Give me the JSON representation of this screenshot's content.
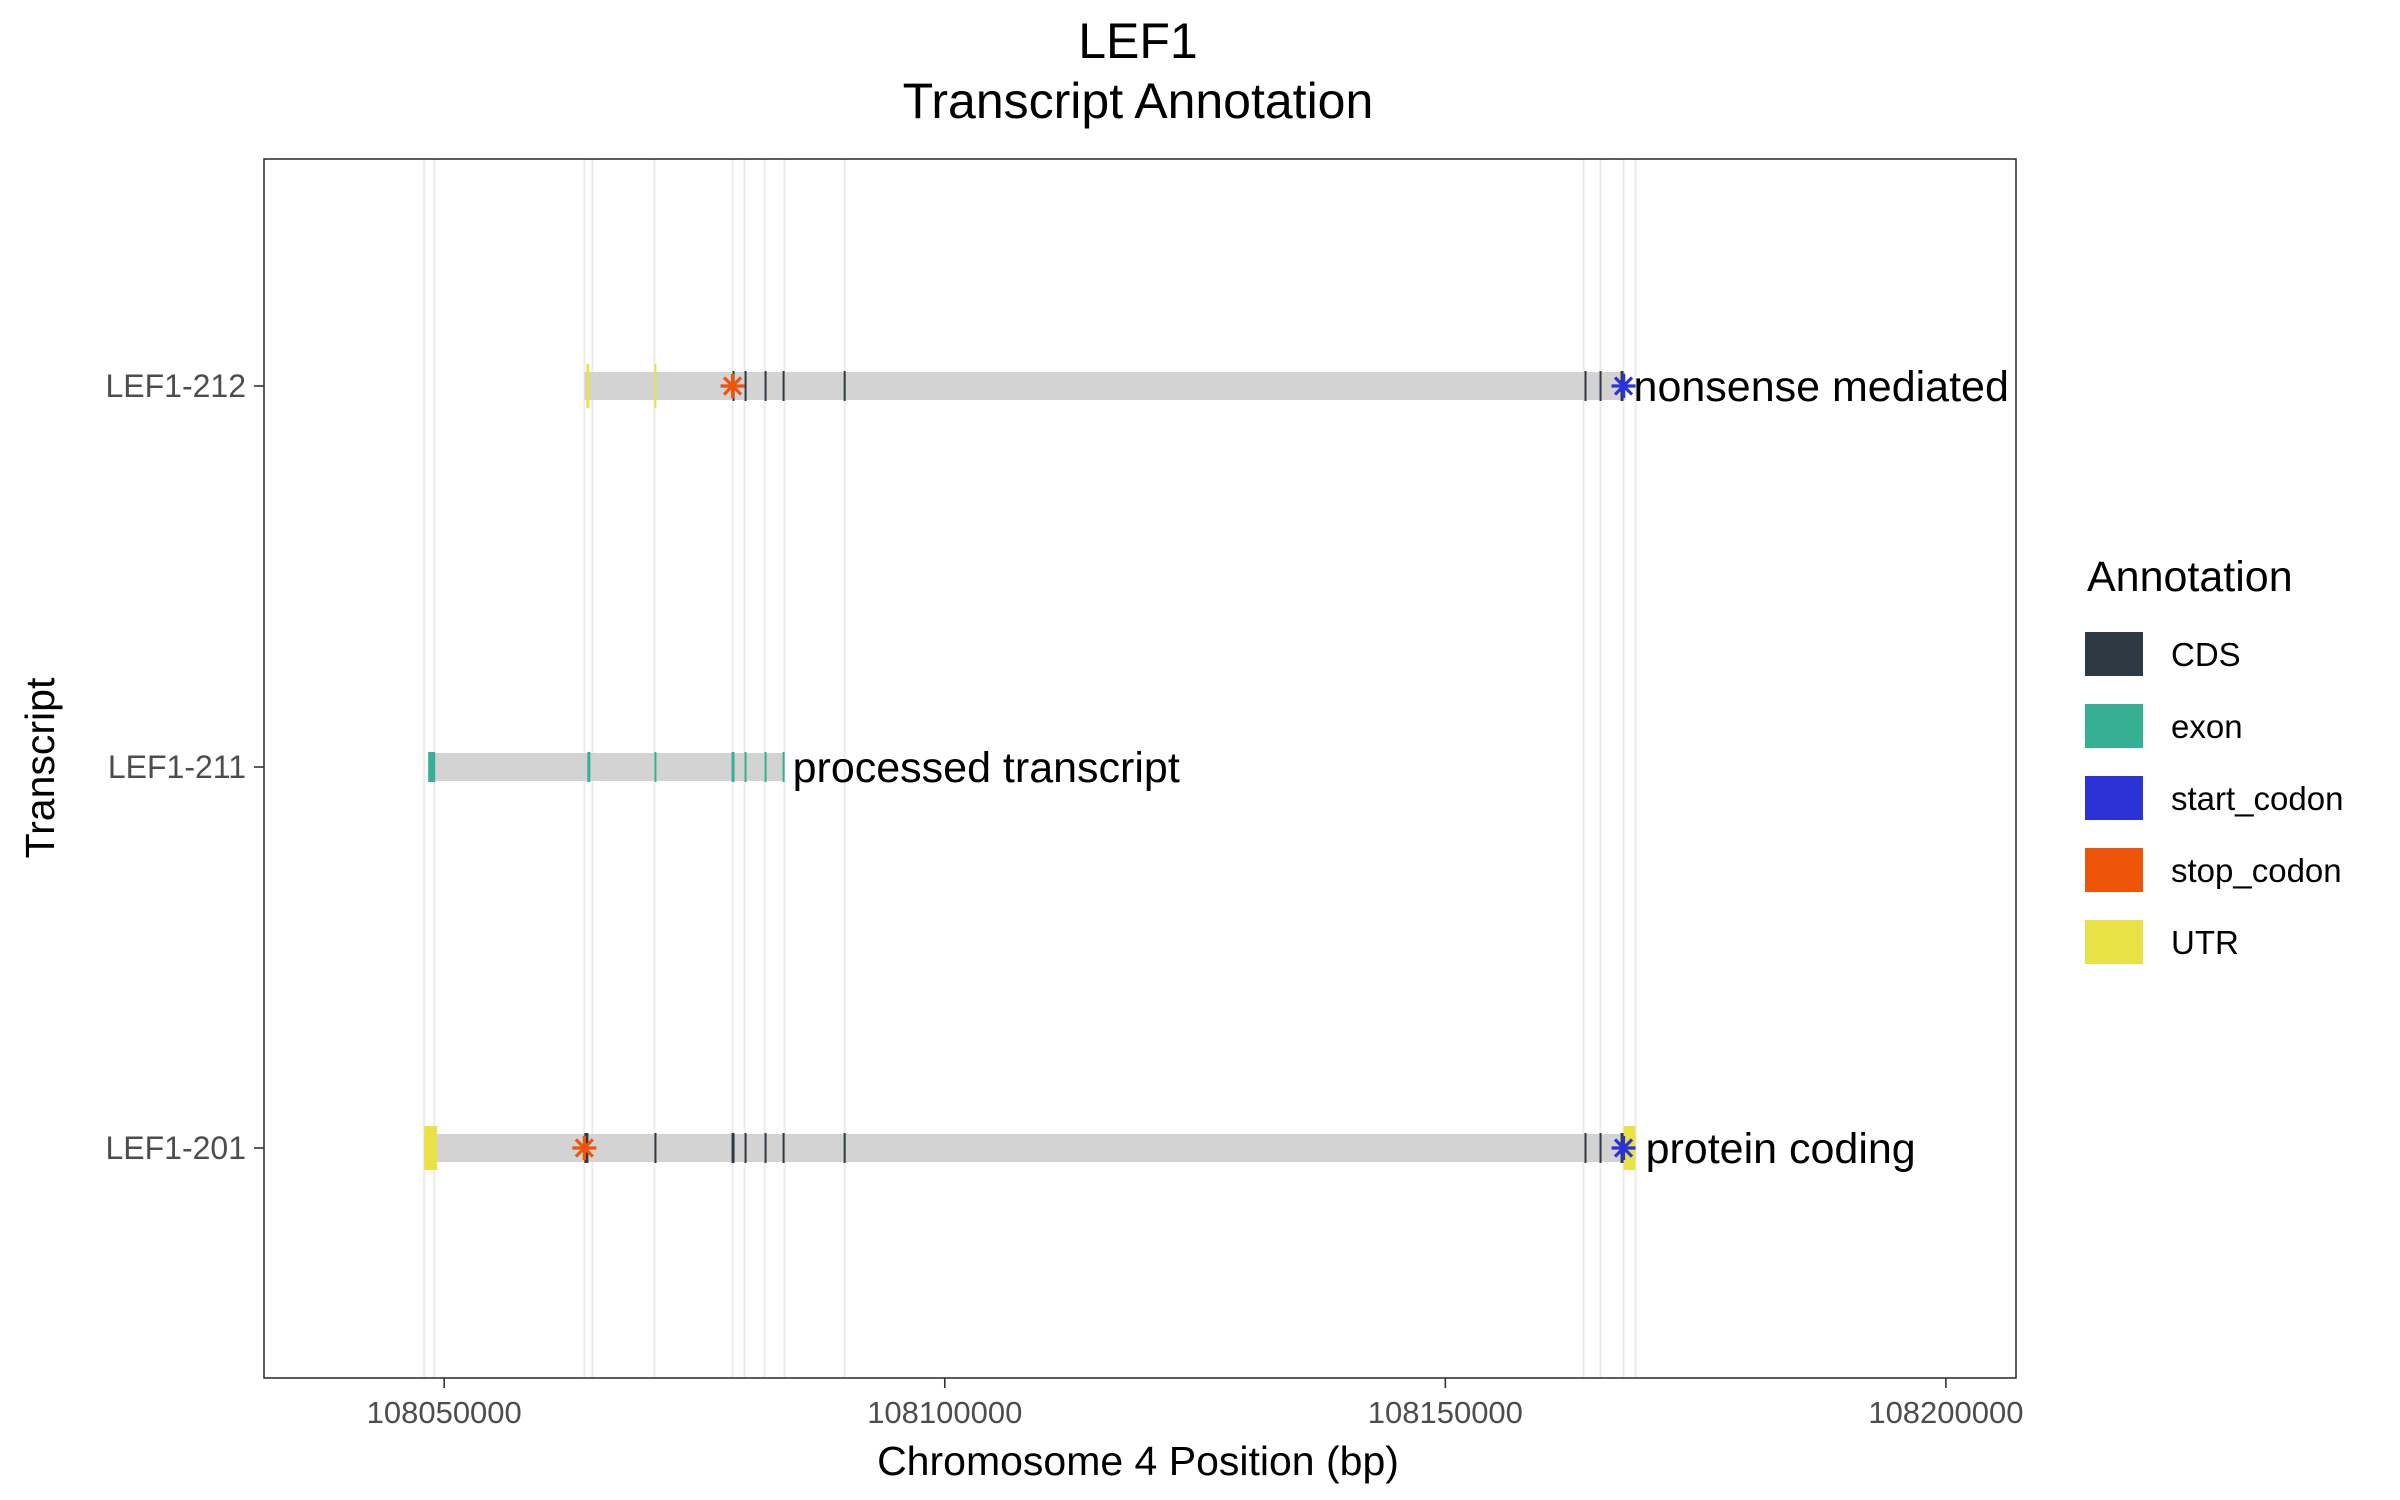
{
  "chart_data": {
    "type": "gene-track",
    "title": "LEF1",
    "subtitle": "Transcript Annotation",
    "xlabel": "Chromosome 4 Position (bp)",
    "ylabel": "Transcript",
    "xlim": [
      108032000,
      108207000
    ],
    "xticks": [
      108050000,
      108100000,
      108150000,
      108200000
    ],
    "xtick_labels": [
      "108050000",
      "108100000",
      "108150000",
      "108200000"
    ],
    "grid": true,
    "legend": {
      "title": "Annotation",
      "placement": "right",
      "entries": [
        {
          "name": "CDS",
          "color": "#2e3a43"
        },
        {
          "name": "exon",
          "color": "#35b092"
        },
        {
          "name": "start_codon",
          "color": "#2b33d6"
        },
        {
          "name": "stop_codon",
          "color": "#ee5508"
        },
        {
          "name": "UTR",
          "color": "#e8e246"
        }
      ]
    },
    "background_bar_color": "#d3d3d3",
    "grid_positions": [
      108048000,
      108049000,
      108064000,
      108064800,
      108071000,
      108078800,
      108080000,
      108082000,
      108084000,
      108090000,
      108163800,
      108165500,
      108167800,
      108169000
    ],
    "transcripts": [
      {
        "name": "LEF1-212",
        "biotype": "nonsense mediated",
        "start": 108064000,
        "end": 108168000,
        "features": [
          {
            "type": "UTR",
            "start": 108064200,
            "end": 108064500
          },
          {
            "type": "UTR",
            "start": 108071000,
            "end": 108071200
          },
          {
            "type": "CDS",
            "start": 108078800,
            "end": 108079000
          },
          {
            "type": "CDS",
            "start": 108080000,
            "end": 108080200
          },
          {
            "type": "CDS",
            "start": 108082000,
            "end": 108082200
          },
          {
            "type": "CDS",
            "start": 108083800,
            "end": 108084000
          },
          {
            "type": "CDS",
            "start": 108089900,
            "end": 108090100
          },
          {
            "type": "CDS",
            "start": 108163900,
            "end": 108164100
          },
          {
            "type": "CDS",
            "start": 108165400,
            "end": 108165600
          },
          {
            "type": "CDS",
            "start": 108167500,
            "end": 108167800
          },
          {
            "type": "stop_codon",
            "pos": 108078800
          },
          {
            "type": "start_codon",
            "pos": 108167800
          }
        ]
      },
      {
        "name": "LEF1-211",
        "biotype": "processed transcript",
        "start": 108048400,
        "end": 108084000,
        "features": [
          {
            "type": "exon",
            "start": 108048400,
            "end": 108049100
          },
          {
            "type": "exon",
            "start": 108064300,
            "end": 108064600
          },
          {
            "type": "exon",
            "start": 108071000,
            "end": 108071200
          },
          {
            "type": "exon",
            "start": 108078700,
            "end": 108079000
          },
          {
            "type": "exon",
            "start": 108080000,
            "end": 108080200
          },
          {
            "type": "exon",
            "start": 108082000,
            "end": 108082200
          },
          {
            "type": "exon",
            "start": 108083800,
            "end": 108084000
          }
        ]
      },
      {
        "name": "LEF1-201",
        "biotype": "protein coding",
        "start": 108048000,
        "end": 108169000,
        "features": [
          {
            "type": "UTR",
            "start": 108048000,
            "end": 108049300
          },
          {
            "type": "UTR",
            "start": 108167800,
            "end": 108169000
          },
          {
            "type": "CDS",
            "start": 108064000,
            "end": 108064400
          },
          {
            "type": "CDS",
            "start": 108071000,
            "end": 108071200
          },
          {
            "type": "CDS",
            "start": 108078700,
            "end": 108079000
          },
          {
            "type": "CDS",
            "start": 108080000,
            "end": 108080200
          },
          {
            "type": "CDS",
            "start": 108082000,
            "end": 108082200
          },
          {
            "type": "CDS",
            "start": 108083800,
            "end": 108084000
          },
          {
            "type": "CDS",
            "start": 108089900,
            "end": 108090100
          },
          {
            "type": "CDS",
            "start": 108163900,
            "end": 108164100
          },
          {
            "type": "CDS",
            "start": 108165400,
            "end": 108165600
          },
          {
            "type": "CDS",
            "start": 108167500,
            "end": 108167800
          },
          {
            "type": "stop_codon",
            "pos": 108064000
          },
          {
            "type": "start_codon",
            "pos": 108167800
          }
        ]
      }
    ]
  }
}
